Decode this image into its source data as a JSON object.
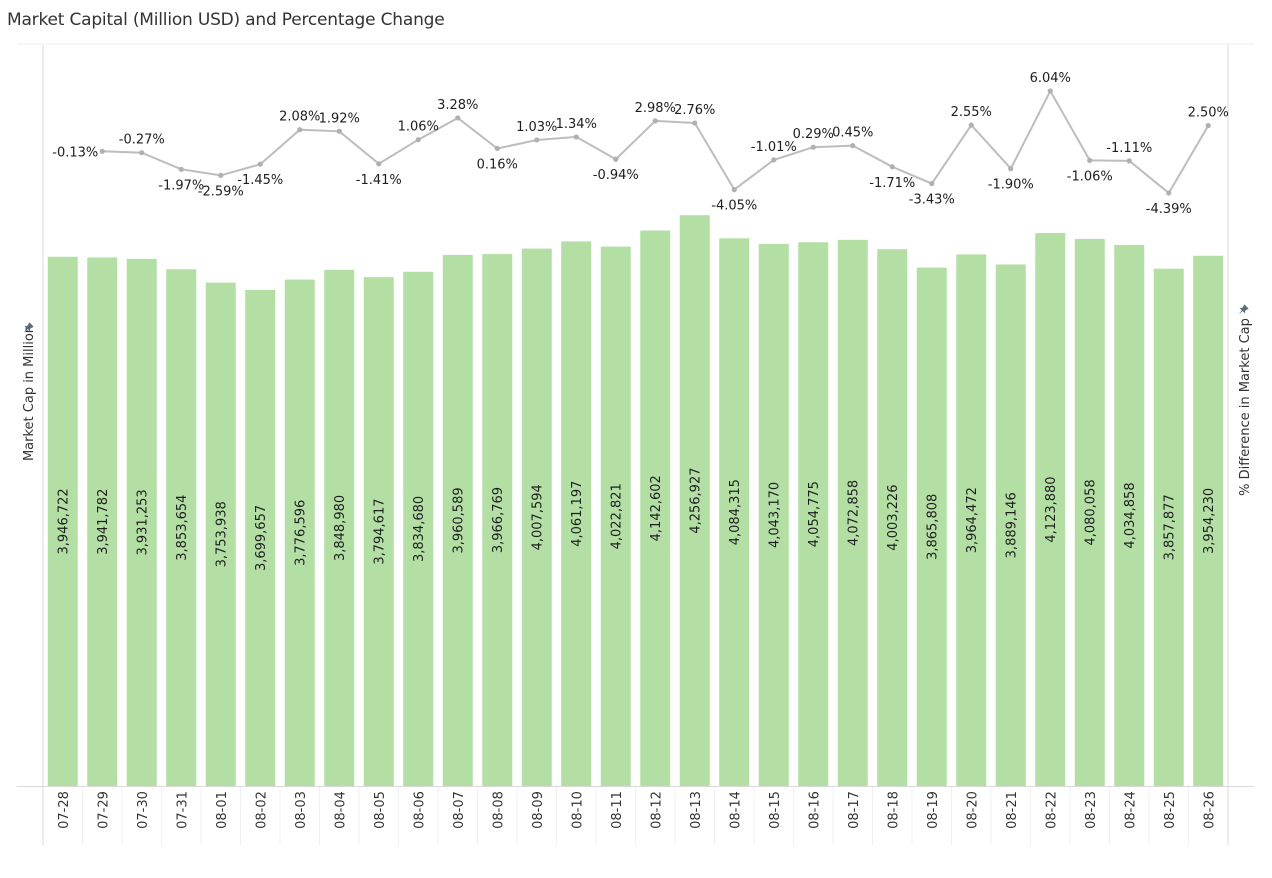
{
  "title": "Market Capital (Million USD) and Percentage Change",
  "colors": {
    "bar": "#b3dfa5",
    "line": "#bdbdbd",
    "point": "#b0b0b0",
    "axis": "#d9d9d9",
    "text": "#1e1e1e",
    "pin": "#5c6b80"
  },
  "chart_data": {
    "type": "bar+line",
    "title": "Market Capital (Million USD) and Percentage Change",
    "xlabel": "",
    "ylabel": "Market Cap in Million",
    "y2label": "% Difference in Market Cap",
    "ylim": [
      0,
      5526000
    ],
    "y2lim": [
      -65.03,
      10.74
    ],
    "grid": false,
    "categories": [
      "07-28",
      "07-29",
      "07-30",
      "07-31",
      "08-01",
      "08-02",
      "08-03",
      "08-04",
      "08-05",
      "08-06",
      "08-07",
      "08-08",
      "08-09",
      "08-10",
      "08-11",
      "08-12",
      "08-13",
      "08-14",
      "08-15",
      "08-16",
      "08-17",
      "08-18",
      "08-19",
      "08-20",
      "08-21",
      "08-22",
      "08-23",
      "08-24",
      "08-25",
      "08-26"
    ],
    "series": [
      {
        "name": "Market Cap in Million",
        "type": "bar",
        "values": [
          3946722,
          3941782,
          3931253,
          3853654,
          3753938,
          3699657,
          3776596,
          3848980,
          3794617,
          3834680,
          3960589,
          3966769,
          4007594,
          4061197,
          4022821,
          4142602,
          4256927,
          4084315,
          4043170,
          4054775,
          4072858,
          4003226,
          3865808,
          3964472,
          3889146,
          4123880,
          4080058,
          4034858,
          3857877,
          3954230
        ],
        "labels": [
          "3,946,722",
          "3,941,782",
          "3,931,253",
          "3,853,654",
          "3,753,938",
          "3,699,657",
          "3,776,596",
          "3,848,980",
          "3,794,617",
          "3,834,680",
          "3,960,589",
          "3,966,769",
          "4,007,594",
          "4,061,197",
          "4,022,821",
          "4,142,602",
          "4,256,927",
          "4,084,315",
          "4,043,170",
          "4,054,775",
          "4,072,858",
          "4,003,226",
          "3,865,808",
          "3,964,472",
          "3,889,146",
          "4,123,880",
          "4,080,058",
          "4,034,858",
          "3,857,877",
          "3,954,230"
        ]
      },
      {
        "name": "% Difference in Market Cap",
        "type": "line",
        "values": [
          null,
          -0.13,
          -0.27,
          -1.97,
          -2.59,
          -1.45,
          2.08,
          1.92,
          -1.41,
          1.06,
          3.28,
          0.16,
          1.03,
          1.34,
          -0.94,
          2.98,
          2.76,
          -4.05,
          -1.01,
          0.29,
          0.45,
          -1.71,
          -3.43,
          2.55,
          -1.9,
          6.04,
          -1.06,
          -1.11,
          -4.39,
          2.5
        ],
        "labels": [
          null,
          "-0.13%",
          "-0.27%",
          "-1.97%",
          "-2.59%",
          "-1.45%",
          "2.08%",
          "1.92%",
          "-1.41%",
          "1.06%",
          "3.28%",
          "0.16%",
          "1.03%",
          "1.34%",
          "-0.94%",
          "2.98%",
          "2.76%",
          "-4.05%",
          "-1.01%",
          "0.29%",
          "0.45%",
          "-1.71%",
          "-3.43%",
          "2.55%",
          "-1.90%",
          "6.04%",
          "-1.06%",
          "-1.11%",
          "-4.39%",
          "2.50%"
        ],
        "label_side": [
          null,
          "left",
          "above",
          "below",
          "below",
          "below",
          "above",
          "above",
          "below",
          "above",
          "above",
          "below",
          "above",
          "above",
          "below",
          "above",
          "above",
          "below",
          "above",
          "above",
          "above",
          "below",
          "below",
          "above",
          "below",
          "above",
          "below",
          "above",
          "below",
          "above"
        ]
      }
    ]
  }
}
